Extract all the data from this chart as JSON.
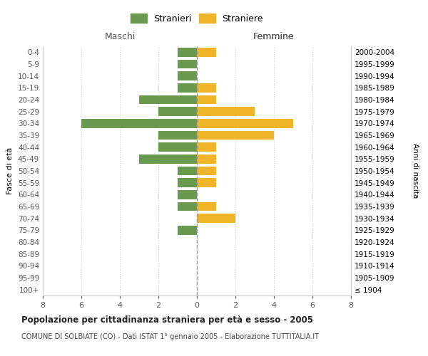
{
  "age_groups": [
    "100+",
    "95-99",
    "90-94",
    "85-89",
    "80-84",
    "75-79",
    "70-74",
    "65-69",
    "60-64",
    "55-59",
    "50-54",
    "45-49",
    "40-44",
    "35-39",
    "30-34",
    "25-29",
    "20-24",
    "15-19",
    "10-14",
    "5-9",
    "0-4"
  ],
  "birth_years": [
    "≤ 1904",
    "1905-1909",
    "1910-1914",
    "1915-1919",
    "1920-1924",
    "1925-1929",
    "1930-1934",
    "1935-1939",
    "1940-1944",
    "1945-1949",
    "1950-1954",
    "1955-1959",
    "1960-1964",
    "1965-1969",
    "1970-1974",
    "1975-1979",
    "1980-1984",
    "1985-1989",
    "1990-1994",
    "1995-1999",
    "2000-2004"
  ],
  "males": [
    0,
    0,
    0,
    0,
    0,
    1,
    0,
    1,
    1,
    1,
    1,
    3,
    2,
    2,
    6,
    2,
    3,
    1,
    1,
    1,
    1
  ],
  "females": [
    0,
    0,
    0,
    0,
    0,
    0,
    2,
    1,
    0,
    1,
    1,
    1,
    1,
    4,
    5,
    3,
    1,
    1,
    0,
    0,
    1
  ],
  "male_color": "#6a9a50",
  "female_color": "#f0b429",
  "bar_height": 0.75,
  "xlim": 8,
  "title": "Popolazione per cittadinanza straniera per età e sesso - 2005",
  "subtitle": "COMUNE DI SOLBIATE (CO) - Dati ISTAT 1° gennaio 2005 - Elaborazione TUTTITALIA.IT",
  "ylabel_left": "Fasce di età",
  "ylabel_right": "Anni di nascita",
  "xlabel_maschi": "Maschi",
  "xlabel_femmine": "Femmine",
  "legend_stranieri": "Stranieri",
  "legend_straniere": "Straniere",
  "background_color": "#ffffff",
  "grid_color": "#cccccc"
}
